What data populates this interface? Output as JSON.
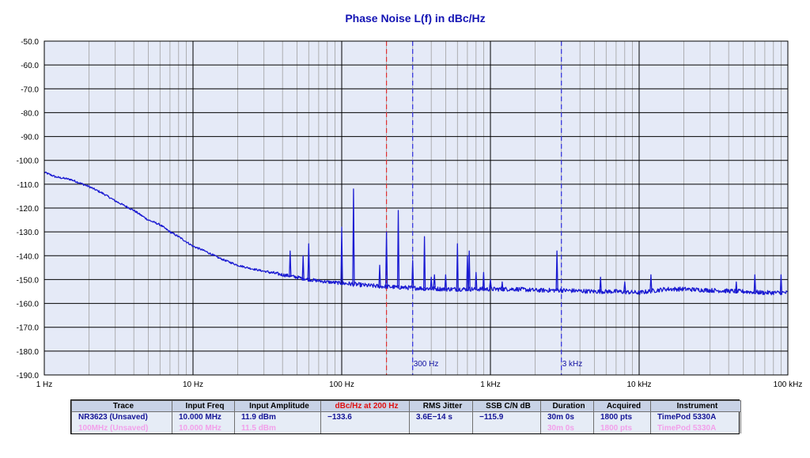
{
  "chart_data": {
    "type": "line",
    "title": "Phase Noise L(f) in dBc/Hz",
    "xscale": "log",
    "xlim": [
      1,
      100000
    ],
    "ylim": [
      -190,
      -50
    ],
    "grid": true,
    "x_tick_labels": [
      "1 Hz",
      "10 Hz",
      "100 Hz",
      "1 kHz",
      "10 kHz",
      "100 kHz"
    ],
    "y_tick_labels": [
      "-50.0",
      "-60.0",
      "-70.0",
      "-80.0",
      "-90.0",
      "-100.0",
      "-110.0",
      "-120.0",
      "-130.0",
      "-140.0",
      "-150.0",
      "-160.0",
      "-170.0",
      "-180.0",
      "-190.0"
    ],
    "markers": [
      {
        "x": 200,
        "label": "",
        "color": "#e03030"
      },
      {
        "x": 300,
        "label": "300 Hz",
        "color": "#3030e0"
      },
      {
        "x": 3000,
        "label": "3 kHz",
        "color": "#3030e0"
      }
    ],
    "series": [
      {
        "name": "NR3623 (Unsaved)",
        "color": "#1a1ad2",
        "x": [
          1,
          1.2,
          1.5,
          2,
          2.5,
          3,
          4,
          5,
          6,
          7,
          8,
          10,
          12,
          15,
          20,
          25,
          30,
          40,
          50,
          60,
          80,
          100,
          150,
          200,
          300,
          500,
          700,
          1000,
          1500,
          2000,
          3000,
          5000,
          7000,
          10000,
          15000,
          20000,
          30000,
          50000,
          70000,
          100000
        ],
        "y": [
          -105,
          -107,
          -108,
          -111,
          -114,
          -117,
          -121,
          -125,
          -127,
          -130,
          -132,
          -136,
          -138,
          -141,
          -144,
          -145.5,
          -146.5,
          -148,
          -149,
          -150,
          -151,
          -151.5,
          -152.5,
          -153,
          -153.5,
          -154,
          -154,
          -154,
          -154,
          -154.5,
          -154.5,
          -155,
          -155,
          -155.5,
          -154,
          -154,
          -154.5,
          -155,
          -155.5,
          -155.5
        ],
        "spurs": [
          {
            "x": 45,
            "y": -138
          },
          {
            "x": 55,
            "y": -140
          },
          {
            "x": 60,
            "y": -135
          },
          {
            "x": 100,
            "y": -128
          },
          {
            "x": 120,
            "y": -112
          },
          {
            "x": 180,
            "y": -144
          },
          {
            "x": 200,
            "y": -130
          },
          {
            "x": 240,
            "y": -121
          },
          {
            "x": 300,
            "y": -142
          },
          {
            "x": 360,
            "y": -132
          },
          {
            "x": 400,
            "y": -149
          },
          {
            "x": 420,
            "y": -148
          },
          {
            "x": 500,
            "y": -148
          },
          {
            "x": 600,
            "y": -135
          },
          {
            "x": 700,
            "y": -140
          },
          {
            "x": 720,
            "y": -138
          },
          {
            "x": 800,
            "y": -147
          },
          {
            "x": 900,
            "y": -147
          },
          {
            "x": 1000,
            "y": -150
          },
          {
            "x": 1200,
            "y": -151
          },
          {
            "x": 2800,
            "y": -138
          },
          {
            "x": 5500,
            "y": -149
          },
          {
            "x": 8000,
            "y": -151
          },
          {
            "x": 12000,
            "y": -148
          },
          {
            "x": 45000,
            "y": -151
          },
          {
            "x": 60000,
            "y": -148
          },
          {
            "x": 90000,
            "y": -148
          }
        ]
      }
    ]
  },
  "summary_table": {
    "headers": [
      "Trace",
      "Input Freq",
      "Input Amplitude",
      "dBc/Hz at 200 Hz",
      "RMS Jitter",
      "SSB C/N dB",
      "Duration",
      "Acquired",
      "Instrument"
    ],
    "rows": [
      [
        "NR3623 (Unsaved)",
        "10.000 MHz",
        "11.9 dBm",
        "−133.6",
        "3.6E−14 s",
        "−115.9",
        "30m 0s",
        "1800 pts",
        "TimePod 5330A"
      ],
      [
        "100MHz (Unsaved)",
        "10.000 MHz",
        "11.5 dBm",
        "",
        "",
        "",
        "30m 0s",
        "1800 pts",
        "TimePod 5330A"
      ]
    ]
  },
  "colors": {
    "plot_bg": "#e5eaf7",
    "major_grid": "#000000",
    "minor_grid": "#a0a0a0",
    "trace1": "#1a1ad2",
    "trace2": "#f2a0ea"
  }
}
